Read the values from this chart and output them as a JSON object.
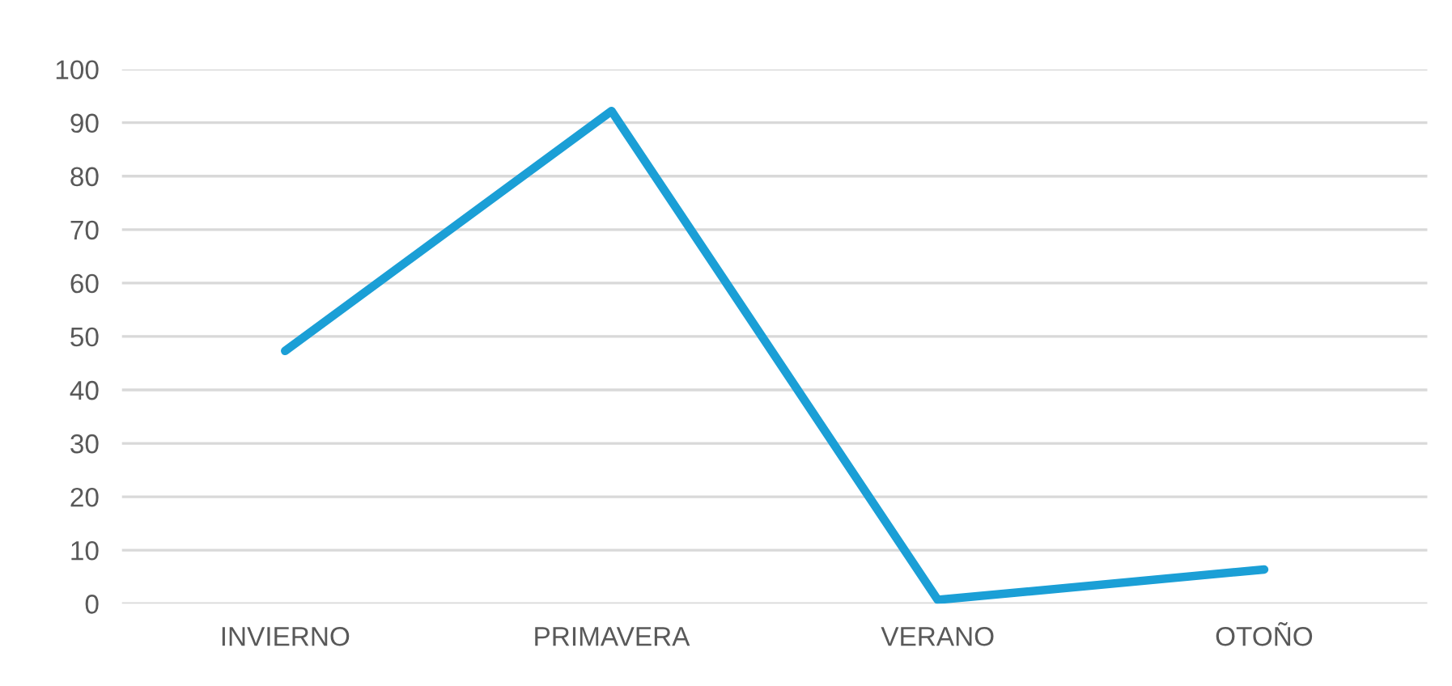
{
  "chart_data": {
    "type": "line",
    "categories": [
      "INVIERNO",
      "PRIMAVERA",
      "VERANO",
      "OTOÑO"
    ],
    "series": [
      {
        "color": "#1b9fd6",
        "values": [
          47.3,
          92.2,
          0.7,
          6.4
        ]
      }
    ],
    "ylim": [
      0,
      100
    ],
    "yticks": [
      0,
      10,
      20,
      30,
      40,
      50,
      60,
      70,
      80,
      90,
      100
    ],
    "grid": "y",
    "marker": "none",
    "line_style": "solid"
  }
}
